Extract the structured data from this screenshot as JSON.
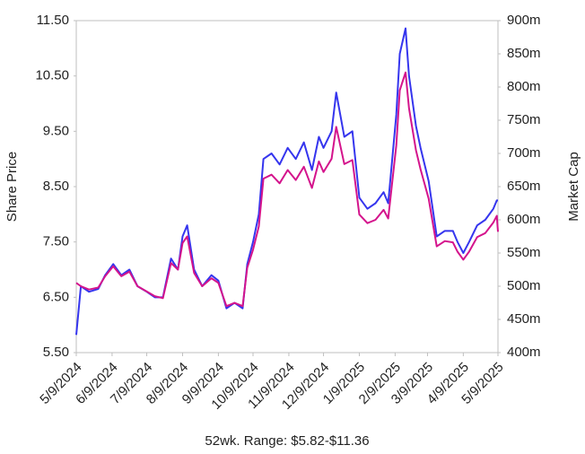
{
  "chart_data": {
    "type": "line",
    "x": [
      "5/9/2024",
      "5/13/2024",
      "5/20/2024",
      "5/28/2024",
      "6/3/2024",
      "6/10/2024",
      "6/17/2024",
      "6/24/2024",
      "7/1/2024",
      "7/9/2024",
      "7/16/2024",
      "7/23/2024",
      "7/30/2024",
      "8/5/2024",
      "8/9/2024",
      "8/13/2024",
      "8/19/2024",
      "8/26/2024",
      "9/3/2024",
      "9/9/2024",
      "9/16/2024",
      "9/23/2024",
      "9/30/2024",
      "10/4/2024",
      "10/9/2024",
      "10/14/2024",
      "10/18/2024",
      "10/25/2024",
      "11/1/2024",
      "11/8/2024",
      "11/15/2024",
      "11/22/2024",
      "11/29/2024",
      "12/5/2024",
      "12/9/2024",
      "12/16/2024",
      "12/20/2024",
      "12/27/2024",
      "1/3/2025",
      "1/9/2025",
      "1/16/2025",
      "1/23/2025",
      "1/30/2025",
      "2/3/2025",
      "2/10/2025",
      "2/13/2025",
      "2/18/2025",
      "2/21/2025",
      "2/27/2025",
      "3/3/2025",
      "3/10/2025",
      "3/17/2025",
      "3/24/2025",
      "3/31/2025",
      "4/4/2025",
      "4/9/2025",
      "4/14/2025",
      "4/21/2025",
      "4/28/2025",
      "5/5/2025",
      "5/8/2025",
      "5/9/2025"
    ],
    "series": [
      {
        "color": "#3535ee",
        "axis": "y",
        "values": [
          5.82,
          6.7,
          6.6,
          6.65,
          6.9,
          7.1,
          6.9,
          7.0,
          6.7,
          6.6,
          6.5,
          6.5,
          7.2,
          7.0,
          7.6,
          7.8,
          7.0,
          6.7,
          6.9,
          6.8,
          6.3,
          6.4,
          6.3,
          7.1,
          7.5,
          8.0,
          9.0,
          9.1,
          8.9,
          9.2,
          9.0,
          9.3,
          8.8,
          9.4,
          9.2,
          9.5,
          10.2,
          9.4,
          9.5,
          8.3,
          8.1,
          8.2,
          8.4,
          8.2,
          9.8,
          10.9,
          11.36,
          10.5,
          9.6,
          9.2,
          8.6,
          7.6,
          7.7,
          7.7,
          7.5,
          7.3,
          7.5,
          7.8,
          7.9,
          8.1,
          8.25,
          8.25
        ]
      },
      {
        "color": "#d4148c",
        "axis": "y2",
        "values": [
          505,
          500,
          495,
          498,
          515,
          530,
          515,
          522,
          500,
          492,
          485,
          482,
          535,
          525,
          565,
          575,
          520,
          500,
          512,
          505,
          470,
          475,
          470,
          528,
          555,
          590,
          662,
          668,
          655,
          675,
          660,
          680,
          648,
          688,
          672,
          692,
          740,
          684,
          690,
          608,
          595,
          600,
          615,
          602,
          712,
          795,
          822,
          768,
          705,
          676,
          632,
          560,
          568,
          566,
          552,
          540,
          552,
          574,
          580,
          596,
          606,
          582
        ]
      }
    ],
    "xlim": [
      "5/9/2024",
      "5/9/2025"
    ],
    "xticks": [
      "5/9/2024",
      "6/9/2024",
      "7/9/2024",
      "8/9/2024",
      "9/9/2024",
      "10/9/2024",
      "11/9/2024",
      "12/9/2024",
      "1/9/2025",
      "2/9/2025",
      "3/9/2025",
      "4/9/2025",
      "5/9/2025"
    ],
    "ylim": [
      5.5,
      11.5
    ],
    "yticks": [
      {
        "value": 5.5,
        "label": "5.50"
      },
      {
        "value": 6.5,
        "label": "6.50"
      },
      {
        "value": 7.5,
        "label": "7.50"
      },
      {
        "value": 8.5,
        "label": "8.50"
      },
      {
        "value": 9.5,
        "label": "9.50"
      },
      {
        "value": 10.5,
        "label": "10.50"
      },
      {
        "value": 11.5,
        "label": "11.50"
      }
    ],
    "y2lim": [
      400,
      900
    ],
    "y2ticks": [
      {
        "value": 400,
        "label": "400m"
      },
      {
        "value": 450,
        "label": "450m"
      },
      {
        "value": 500,
        "label": "500m"
      },
      {
        "value": 550,
        "label": "550m"
      },
      {
        "value": 600,
        "label": "600m"
      },
      {
        "value": 650,
        "label": "650m"
      },
      {
        "value": 700,
        "label": "700m"
      },
      {
        "value": 750,
        "label": "750m"
      },
      {
        "value": 800,
        "label": "800m"
      },
      {
        "value": 850,
        "label": "850m"
      },
      {
        "value": 900,
        "label": "900m"
      }
    ],
    "ylabel": "Share Price",
    "y2label": "Market Cap",
    "caption": "52wk. Range: $5.82-$11.36"
  }
}
